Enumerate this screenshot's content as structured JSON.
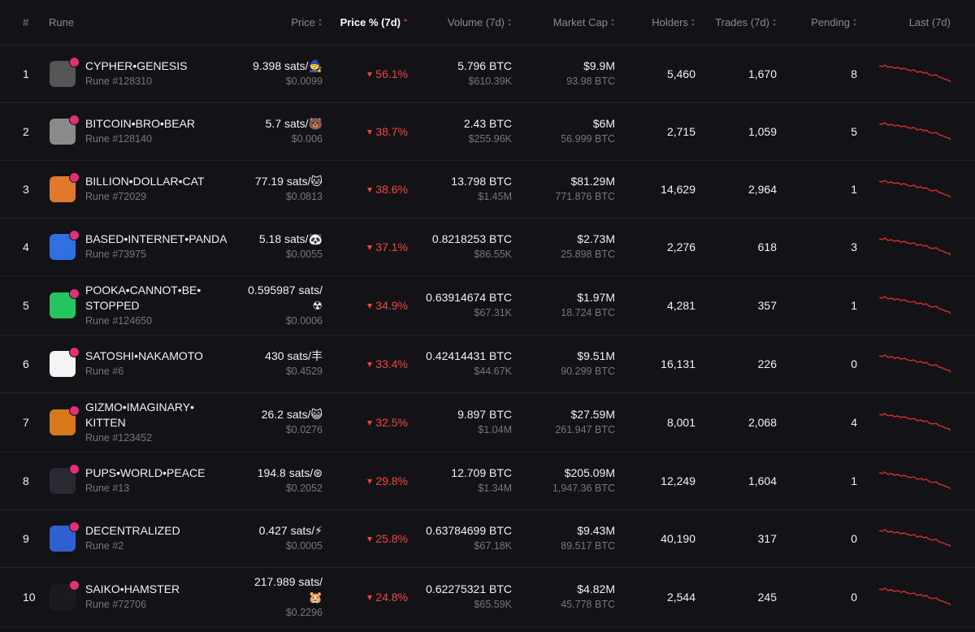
{
  "table": {
    "columns": [
      "#",
      "Rune",
      "Price",
      "Price % (7d)",
      "Volume (7d)",
      "Market Cap",
      "Holders",
      "Trades (7d)",
      "Pending",
      "Last (7d)"
    ],
    "rows": [
      {
        "rank": "1",
        "name": [
          "CYPHER•GENESIS"
        ],
        "id": "Rune #128310",
        "price": [
          "9.398 sats/🧙"
        ],
        "price_usd": "$0.0099",
        "change": "56.1%",
        "volume": "5.796 BTC",
        "volume_usd": "$610.39K",
        "market_cap": "$9.9M",
        "market_cap_btc": "93.98 BTC",
        "holders": "5,460",
        "trades": "1,670",
        "pending": "8"
      },
      {
        "rank": "2",
        "name": [
          "BITCOIN•BRO•BEAR"
        ],
        "id": "Rune #128140",
        "price": [
          "5.7 sats/🐻"
        ],
        "price_usd": "$0.006",
        "change": "38.7%",
        "volume": "2.43 BTC",
        "volume_usd": "$255.96K",
        "market_cap": "$6M",
        "market_cap_btc": "56.999 BTC",
        "holders": "2,715",
        "trades": "1,059",
        "pending": "5"
      },
      {
        "rank": "3",
        "name": [
          "BILLION•DOLLAR•CAT"
        ],
        "id": "Rune #72029",
        "price": [
          "77.19 sats/🐱"
        ],
        "price_usd": "$0.0813",
        "change": "38.6%",
        "volume": "13.798 BTC",
        "volume_usd": "$1.45M",
        "market_cap": "$81.29M",
        "market_cap_btc": "771.876 BTC",
        "holders": "14,629",
        "trades": "2,964",
        "pending": "1"
      },
      {
        "rank": "4",
        "name": [
          "BASED•INTERNET•PANDA"
        ],
        "id": "Rune #73975",
        "price": [
          "5.18 sats/🐼"
        ],
        "price_usd": "$0.0055",
        "change": "37.1%",
        "volume": "0.8218253 BTC",
        "volume_usd": "$86.55K",
        "market_cap": "$2.73M",
        "market_cap_btc": "25.898 BTC",
        "holders": "2,276",
        "trades": "618",
        "pending": "3"
      },
      {
        "rank": "5",
        "name": [
          "POOKA•CANNOT•BE•",
          "STOPPED"
        ],
        "id": "Rune #124650",
        "price": [
          "0.595987 sats/",
          "☢"
        ],
        "price_usd": "$0.0006",
        "change": "34.9%",
        "volume": "0.63914674 BTC",
        "volume_usd": "$67.31K",
        "market_cap": "$1.97M",
        "market_cap_btc": "18.724 BTC",
        "holders": "4,281",
        "trades": "357",
        "pending": "1"
      },
      {
        "rank": "6",
        "name": [
          "SATOSHI•NAKAMOTO"
        ],
        "id": "Rune #6",
        "price": [
          "430 sats/丰"
        ],
        "price_usd": "$0.4529",
        "change": "33.4%",
        "volume": "0.42414431 BTC",
        "volume_usd": "$44.67K",
        "market_cap": "$9.51M",
        "market_cap_btc": "90.299 BTC",
        "holders": "16,131",
        "trades": "226",
        "pending": "0"
      },
      {
        "rank": "7",
        "name": [
          "GIZMO•IMAGINARY•",
          "KITTEN"
        ],
        "id": "Rune #123452",
        "price": [
          "26.2 sats/😺"
        ],
        "price_usd": "$0.0276",
        "change": "32.5%",
        "volume": "9.897 BTC",
        "volume_usd": "$1.04M",
        "market_cap": "$27.59M",
        "market_cap_btc": "261.947 BTC",
        "holders": "8,001",
        "trades": "2,068",
        "pending": "4"
      },
      {
        "rank": "8",
        "name": [
          "PUPS•WORLD•PEACE"
        ],
        "id": "Rune #13",
        "price": [
          "194.8 sats/⊛"
        ],
        "price_usd": "$0.2052",
        "change": "29.8%",
        "volume": "12.709 BTC",
        "volume_usd": "$1.34M",
        "market_cap": "$205.09M",
        "market_cap_btc": "1,947.36 BTC",
        "holders": "12,249",
        "trades": "1,604",
        "pending": "1"
      },
      {
        "rank": "9",
        "name": [
          "DECENTRALIZED"
        ],
        "id": "Rune #2",
        "price": [
          "0.427 sats/⚡"
        ],
        "price_usd": "$0.0005",
        "change": "25.8%",
        "volume": "0.63784699 BTC",
        "volume_usd": "$67.18K",
        "market_cap": "$9.43M",
        "market_cap_btc": "89.517 BTC",
        "holders": "40,190",
        "trades": "317",
        "pending": "0"
      },
      {
        "rank": "10",
        "name": [
          "SAIKO•HAMSTER"
        ],
        "id": "Rune #72706",
        "price": [
          "217.989 sats/",
          "🐹"
        ],
        "price_usd": "$0.2296",
        "change": "24.8%",
        "volume": "0.62275321 BTC",
        "volume_usd": "$65.59K",
        "market_cap": "$4.82M",
        "market_cap_btc": "45.778 BTC",
        "holders": "2,544",
        "trades": "245",
        "pending": "0"
      }
    ]
  }
}
